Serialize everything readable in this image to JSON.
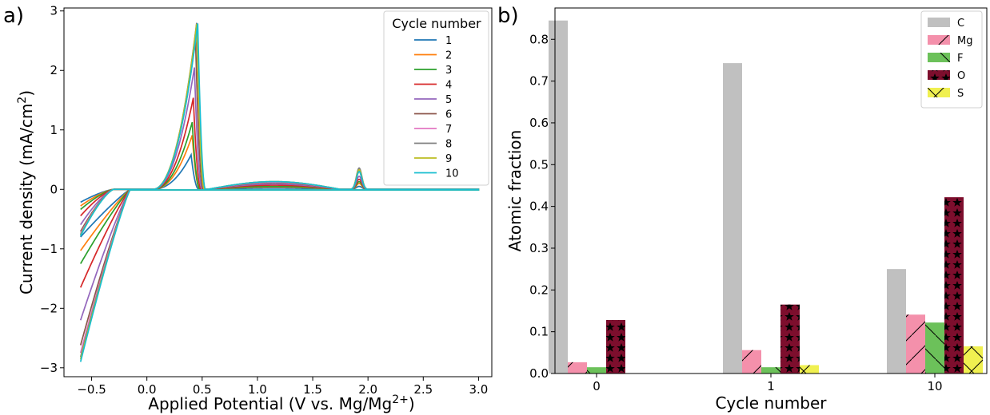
{
  "chart_data": [
    {
      "panel_label": "a)",
      "type": "line",
      "xlabel": "Applied Potential (V vs. Mg/Mg",
      "xlabel_sup": "2+",
      "xlabel_end": ")",
      "ylabel": "Current density (mA/cm",
      "ylabel_sup": "2",
      "ylabel_end": ")",
      "xlim": [
        -0.75,
        3.12
      ],
      "ylim": [
        -3.15,
        3.05
      ],
      "xticks": [
        -0.5,
        0.0,
        0.5,
        1.0,
        1.5,
        2.0,
        2.5,
        3.0
      ],
      "xtick_labels": [
        "−0.5",
        "0.0",
        "0.5",
        "1.0",
        "1.5",
        "2.0",
        "2.5",
        "3.0"
      ],
      "yticks": [
        -3,
        -2,
        -1,
        0,
        1,
        2,
        3
      ],
      "ytick_labels": [
        "−3",
        "−2",
        "−1",
        "0",
        "1",
        "2",
        "3"
      ],
      "legend_title": "Cycle number",
      "legend_position": "top-right",
      "series": [
        {
          "name": "1",
          "color": "#1f77b4",
          "peak1": 0.58,
          "peak1_x": 0.4,
          "peak2": 0.05,
          "min": -0.8,
          "hump": 0.02
        },
        {
          "name": "2",
          "color": "#ff7f0e",
          "peak1": 0.91,
          "peak1_x": 0.41,
          "peak2": 0.1,
          "min": -1.03,
          "hump": 0.04
        },
        {
          "name": "3",
          "color": "#2ca02c",
          "peak1": 1.13,
          "peak1_x": 0.41,
          "peak2": 0.13,
          "min": -1.25,
          "hump": 0.05
        },
        {
          "name": "4",
          "color": "#d62728",
          "peak1": 1.54,
          "peak1_x": 0.42,
          "peak2": 0.17,
          "min": -1.65,
          "hump": 0.07
        },
        {
          "name": "5",
          "color": "#9467bd",
          "peak1": 2.05,
          "peak1_x": 0.43,
          "peak2": 0.22,
          "min": -2.2,
          "hump": 0.09
        },
        {
          "name": "6",
          "color": "#8c564b",
          "peak1": 2.52,
          "peak1_x": 0.44,
          "peak2": 0.3,
          "min": -2.62,
          "hump": 0.11
        },
        {
          "name": "7",
          "color": "#e377c2",
          "peak1": 2.72,
          "peak1_x": 0.45,
          "peak2": 0.34,
          "min": -2.75,
          "hump": 0.12
        },
        {
          "name": "8",
          "color": "#7f7f7f",
          "peak1": 2.8,
          "peak1_x": 0.45,
          "peak2": 0.36,
          "min": -2.82,
          "hump": 0.13
        },
        {
          "name": "9",
          "color": "#bcbd22",
          "peak1": 2.78,
          "peak1_x": 0.45,
          "peak2": 0.33,
          "min": -2.86,
          "hump": 0.13
        },
        {
          "name": "10",
          "color": "#17becf",
          "peak1": 2.79,
          "peak1_x": 0.46,
          "peak2": 0.3,
          "min": -2.9,
          "hump": 0.13
        }
      ]
    },
    {
      "panel_label": "b)",
      "type": "bar",
      "xlabel": "Cycle number",
      "ylabel": "Atomic fraction",
      "categories": [
        "0",
        "1",
        "10"
      ],
      "ylim": [
        0,
        0.875
      ],
      "yticks": [
        0.0,
        0.1,
        0.2,
        0.3,
        0.4,
        0.5,
        0.6,
        0.7,
        0.8
      ],
      "ytick_labels": [
        "0.0",
        "0.1",
        "0.2",
        "0.3",
        "0.4",
        "0.5",
        "0.6",
        "0.7",
        "0.8"
      ],
      "legend_position": "top-right",
      "series": [
        {
          "name": "C",
          "color": "#c0c0c0",
          "pattern": "none",
          "values": [
            0.845,
            0.743,
            0.25
          ]
        },
        {
          "name": "Mg",
          "color": "#f490ab",
          "pattern": "slash",
          "values": [
            0.027,
            0.056,
            0.141
          ]
        },
        {
          "name": "F",
          "color": "#6cc15a",
          "pattern": "backslash",
          "values": [
            0.015,
            0.015,
            0.122
          ]
        },
        {
          "name": "O",
          "color": "#7d0e2d",
          "pattern": "stars",
          "values": [
            0.128,
            0.165,
            0.422
          ]
        },
        {
          "name": "S",
          "color": "#f0f050",
          "pattern": "cross",
          "values": [
            0.0,
            0.02,
            0.065
          ]
        }
      ]
    }
  ]
}
